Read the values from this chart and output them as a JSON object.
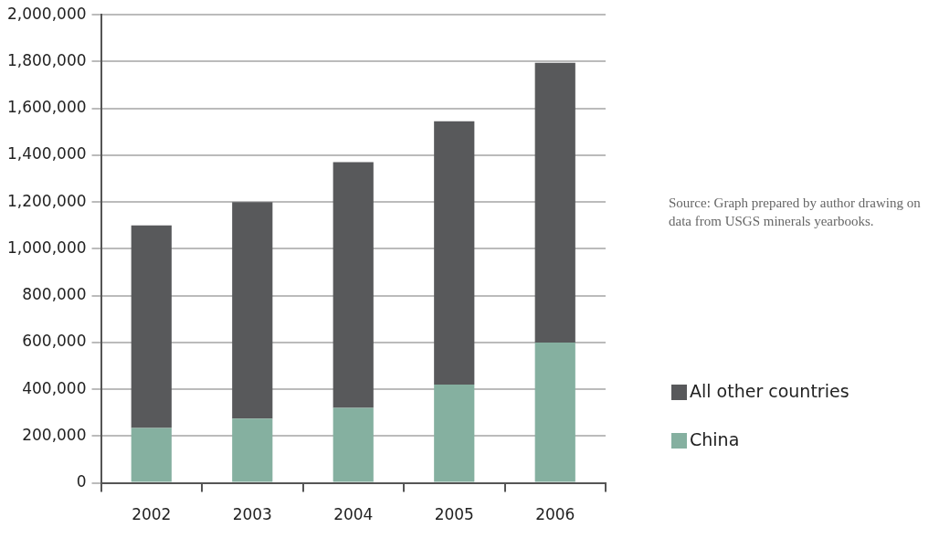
{
  "chart_data": {
    "type": "bar",
    "stacked": true,
    "categories": [
      "2002",
      "2003",
      "2004",
      "2005",
      "2006"
    ],
    "series": [
      {
        "name": "China",
        "color": "#85b0a0",
        "values": [
          235000,
          275000,
          320000,
          420000,
          600000
        ]
      },
      {
        "name": "All other countries",
        "color": "#58595b",
        "values": [
          865000,
          925000,
          1050000,
          1125000,
          1195000
        ]
      }
    ],
    "ylim": [
      0,
      2000000
    ],
    "yticks": [
      {
        "value": 0,
        "label": "0"
      },
      {
        "value": 200000,
        "label": "200,000"
      },
      {
        "value": 400000,
        "label": "400,000"
      },
      {
        "value": 600000,
        "label": "600,000"
      },
      {
        "value": 800000,
        "label": "800,000"
      },
      {
        "value": 1000000,
        "label": "1,000,000"
      },
      {
        "value": 1200000,
        "label": "1,200,000"
      },
      {
        "value": 1400000,
        "label": "1,400,000"
      },
      {
        "value": 1600000,
        "label": "1,600,000"
      },
      {
        "value": 1800000,
        "label": "1,800,000"
      },
      {
        "value": 2000000,
        "label": "2,000,000"
      }
    ],
    "grid": "y",
    "legend": "right",
    "annotations": [
      "Source: Graph prepared by author drawing on data from USGS minerals yearbooks."
    ]
  }
}
